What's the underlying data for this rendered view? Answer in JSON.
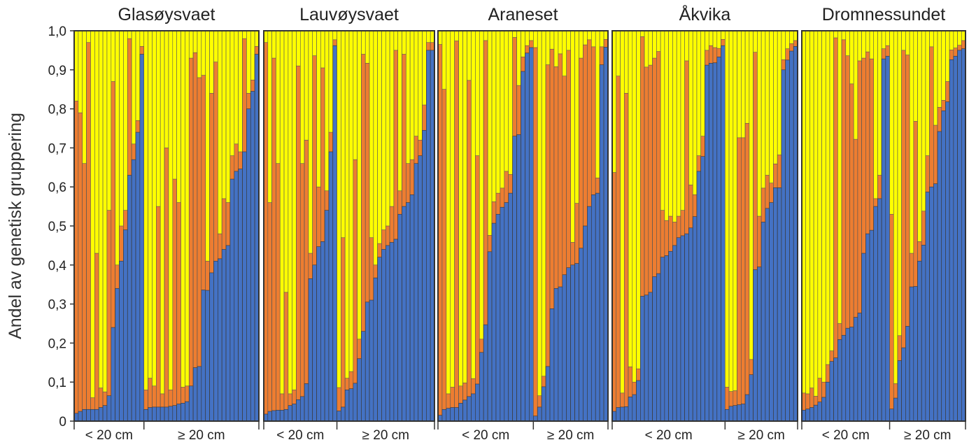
{
  "chart_data": {
    "type": "bar",
    "subtype": "stacked-proportion",
    "ylabel": "Andel av genetisk gruppering",
    "ylim": [
      0,
      1
    ],
    "yticks": [
      "0",
      "0,1",
      "0,2",
      "0,3",
      "0,4",
      "0,5",
      "0,6",
      "0,7",
      "0,8",
      "0,9",
      "1,0"
    ],
    "series_colors": {
      "blue": "#4472C4",
      "orange": "#ED7D31",
      "yellow": "#FFFF00"
    },
    "bar_format": "[blue, blue+orange] cumulative; yellow fills remainder to 1.0",
    "panels": [
      {
        "title": "Glasøysvaet",
        "groups": [
          {
            "label": "< 20 cm",
            "bars": [
              [
                0.02,
                0.82
              ],
              [
                0.025,
                0.79
              ],
              [
                0.03,
                0.66
              ],
              [
                0.03,
                0.97
              ],
              [
                0.03,
                0.06
              ],
              [
                0.03,
                0.43
              ],
              [
                0.035,
                0.085
              ],
              [
                0.04,
                0.075
              ],
              [
                0.065,
                0.54
              ],
              [
                0.24,
                0.87
              ],
              [
                0.34,
                0.4
              ],
              [
                0.41,
                0.5
              ],
              [
                0.49,
                0.54
              ],
              [
                0.63,
                0.98
              ],
              [
                0.67,
                0.71
              ],
              [
                0.74,
                0.77
              ],
              [
                0.94,
                0.96
              ]
            ]
          },
          {
            "label": "≥ 20 cm",
            "bars": [
              [
                0.03,
                0.08
              ],
              [
                0.035,
                0.11
              ],
              [
                0.036,
                0.09
              ],
              [
                0.036,
                0.55
              ],
              [
                0.036,
                0.07
              ],
              [
                0.036,
                0.7
              ],
              [
                0.038,
                0.08
              ],
              [
                0.04,
                0.62
              ],
              [
                0.044,
                0.56
              ],
              [
                0.046,
                0.087
              ],
              [
                0.05,
                0.09
              ],
              [
                0.09,
                0.93
              ],
              [
                0.137,
                0.944
              ],
              [
                0.14,
                0.88
              ],
              [
                0.336,
                0.886
              ],
              [
                0.335,
                0.41
              ],
              [
                0.38,
                0.84
              ],
              [
                0.41,
                0.92
              ],
              [
                0.416,
                0.48
              ],
              [
                0.44,
                0.57
              ],
              [
                0.45,
                0.56
              ],
              [
                0.62,
                0.68
              ],
              [
                0.64,
                0.71
              ],
              [
                0.646,
                0.69
              ],
              [
                0.69,
                0.98
              ],
              [
                0.8,
                0.84
              ],
              [
                0.845,
                0.874
              ],
              [
                0.94,
                0.96
              ]
            ]
          }
        ]
      },
      {
        "title": "Lauvøysvaet",
        "groups": [
          {
            "label": "< 20 cm",
            "bars": [
              [
                0.018,
                0.97
              ],
              [
                0.025,
                0.56
              ],
              [
                0.027,
                0.93
              ],
              [
                0.028,
                0.66
              ],
              [
                0.028,
                0.07
              ],
              [
                0.03,
                0.33
              ],
              [
                0.04,
                0.07
              ],
              [
                0.044,
                0.08
              ],
              [
                0.055,
                0.91
              ],
              [
                0.063,
                0.66
              ],
              [
                0.096,
                0.72
              ],
              [
                0.365,
                0.43
              ],
              [
                0.4,
                0.936
              ],
              [
                0.447,
                0.6
              ],
              [
                0.46,
                0.905
              ],
              [
                0.54,
                0.59
              ],
              [
                0.69,
                0.74
              ],
              [
                0.962,
                0.977
              ]
            ]
          },
          {
            "label": "≥ 20 cm",
            "bars": [
              [
                0.026,
                0.086
              ],
              [
                0.036,
                0.47
              ],
              [
                0.08,
                0.11
              ],
              [
                0.083,
                0.127
              ],
              [
                0.097,
                0.67
              ],
              [
                0.16,
                0.21
              ],
              [
                0.23,
                0.94
              ],
              [
                0.305,
                0.917
              ],
              [
                0.31,
                0.47
              ],
              [
                0.367,
                0.4
              ],
              [
                0.42,
                0.455
              ],
              [
                0.44,
                0.49
              ],
              [
                0.45,
                0.5
              ],
              [
                0.458,
                0.55
              ],
              [
                0.466,
                0.95
              ],
              [
                0.53,
                0.59
              ],
              [
                0.55,
                0.94
              ],
              [
                0.56,
                0.66
              ],
              [
                0.58,
                0.67
              ],
              [
                0.66,
                0.73
              ],
              [
                0.68,
                0.72
              ],
              [
                0.745,
                0.81
              ],
              [
                0.95,
                0.97
              ],
              [
                0.95,
                0.97
              ]
            ]
          }
        ]
      },
      {
        "title": "Araneset",
        "groups": [
          {
            "label": "< 20 cm",
            "bars": [
              [
                0.015,
                0.965
              ],
              [
                0.03,
                0.85
              ],
              [
                0.033,
                0.07
              ],
              [
                0.035,
                0.087
              ],
              [
                0.035,
                0.974
              ],
              [
                0.046,
                0.09
              ],
              [
                0.054,
                0.098
              ],
              [
                0.063,
                0.873
              ],
              [
                0.07,
                0.109
              ],
              [
                0.095,
                0.68
              ],
              [
                0.176,
                0.21
              ],
              [
                0.247,
                0.975
              ],
              [
                0.434,
                0.476
              ],
              [
                0.507,
                0.562
              ],
              [
                0.53,
                0.584
              ],
              [
                0.548,
                0.597
              ],
              [
                0.56,
                0.64
              ],
              [
                0.584,
                0.632
              ],
              [
                0.73,
                0.983
              ],
              [
                0.734,
                0.86
              ],
              [
                0.896,
                0.933
              ],
              [
                0.943,
                0.962
              ],
              [
                0.957,
                0.975
              ]
            ]
          },
          {
            "label": "≥ 20 cm",
            "bars": [
              [
                0.013,
                0.957
              ],
              [
                0.036,
                0.065
              ],
              [
                0.088,
                0.115
              ],
              [
                0.14,
                0.913
              ],
              [
                0.288,
                0.953
              ],
              [
                0.34,
                0.908
              ],
              [
                0.344,
                0.941
              ],
              [
                0.375,
                0.884
              ],
              [
                0.393,
                0.95
              ],
              [
                0.4,
                0.458
              ],
              [
                0.404,
                0.558
              ],
              [
                0.443,
                0.93
              ],
              [
                0.5,
                0.964
              ],
              [
                0.55,
                0.977
              ],
              [
                0.58,
                0.959
              ],
              [
                0.584,
                0.623
              ],
              [
                0.913,
                0.959
              ],
              [
                0.958,
                0.978
              ]
            ]
          }
        ]
      },
      {
        "title": "Åkvika",
        "groups": [
          {
            "label": "< 20 cm",
            "bars": [
              [
                0.025,
                0.637
              ],
              [
                0.035,
                0.884
              ],
              [
                0.036,
                0.072
              ],
              [
                0.037,
                0.84
              ],
              [
                0.062,
                0.139
              ],
              [
                0.068,
                0.1
              ],
              [
                0.104,
                0.134
              ],
              [
                0.32,
                0.985
              ],
              [
                0.323,
                0.907
              ],
              [
                0.33,
                0.912
              ],
              [
                0.37,
                0.93
              ],
              [
                0.378,
                0.947
              ],
              [
                0.42,
                0.54
              ],
              [
                0.424,
                0.514
              ],
              [
                0.435,
                0.525
              ],
              [
                0.45,
                0.51
              ],
              [
                0.47,
                0.525
              ],
              [
                0.475,
                0.54
              ],
              [
                0.48,
                0.923
              ],
              [
                0.495,
                0.605
              ],
              [
                0.524,
                0.58
              ],
              [
                0.64,
                0.68
              ],
              [
                0.678,
                0.73
              ],
              [
                0.912,
                0.95
              ],
              [
                0.917,
                0.962
              ],
              [
                0.918,
                0.957
              ],
              [
                0.933,
                0.955
              ],
              [
                0.962,
                0.978
              ]
            ]
          },
          {
            "label": "≥ 20 cm",
            "bars": [
              [
                0.03,
                0.087
              ],
              [
                0.038,
                0.076
              ],
              [
                0.04,
                0.078
              ],
              [
                0.042,
                0.726
              ],
              [
                0.044,
                0.726
              ],
              [
                0.068,
                0.763
              ],
              [
                0.119,
                0.158
              ],
              [
                0.388,
                0.945
              ],
              [
                0.395,
                0.525
              ],
              [
                0.51,
                0.597
              ],
              [
                0.545,
                0.63
              ],
              [
                0.56,
                0.61
              ],
              [
                0.598,
                0.659
              ],
              [
                0.598,
                0.682
              ],
              [
                0.9,
                0.926
              ],
              [
                0.925,
                0.954
              ],
              [
                0.948,
                0.967
              ],
              [
                0.96,
                0.975
              ]
            ]
          }
        ]
      },
      {
        "title": "Dromnessundet",
        "groups": [
          {
            "label": "< 20 cm",
            "bars": [
              [
                0.028,
                0.072
              ],
              [
                0.031,
                0.07
              ],
              [
                0.035,
                0.085
              ],
              [
                0.041,
                0.064
              ],
              [
                0.049,
                0.11
              ],
              [
                0.061,
                0.1
              ],
              [
                0.1,
                0.145
              ],
              [
                0.153,
                0.18
              ],
              [
                0.162,
                0.982
              ],
              [
                0.209,
                0.25
              ],
              [
                0.22,
                0.977
              ],
              [
                0.238,
                0.936
              ],
              [
                0.241,
                0.864
              ],
              [
                0.266,
                0.722
              ],
              [
                0.277,
                0.923
              ],
              [
                0.43,
                0.93
              ],
              [
                0.48,
                0.946
              ],
              [
                0.489,
                0.928
              ],
              [
                0.55,
                0.57
              ],
              [
                0.57,
                0.63
              ],
              [
                0.928,
                0.954
              ],
              [
                0.935,
                0.962
              ]
            ]
          },
          {
            "label": "≥ 20 cm",
            "bars": [
              [
                0.031,
                0.53
              ],
              [
                0.059,
                0.096
              ],
              [
                0.155,
                0.219
              ],
              [
                0.188,
                0.95
              ],
              [
                0.243,
                0.938
              ],
              [
                0.344,
                0.43
              ],
              [
                0.345,
                0.768
              ],
              [
                0.41,
                0.46
              ],
              [
                0.451,
                0.538
              ],
              [
                0.587,
                0.68
              ],
              [
                0.6,
                0.959
              ],
              [
                0.608,
                0.758
              ],
              [
                0.742,
                0.804
              ],
              [
                0.795,
                0.822
              ],
              [
                0.818,
                0.87
              ],
              [
                0.926,
                0.951
              ],
              [
                0.935,
                0.956
              ],
              [
                0.95,
                0.963
              ],
              [
                0.954,
                0.975
              ]
            ]
          }
        ]
      }
    ]
  }
}
